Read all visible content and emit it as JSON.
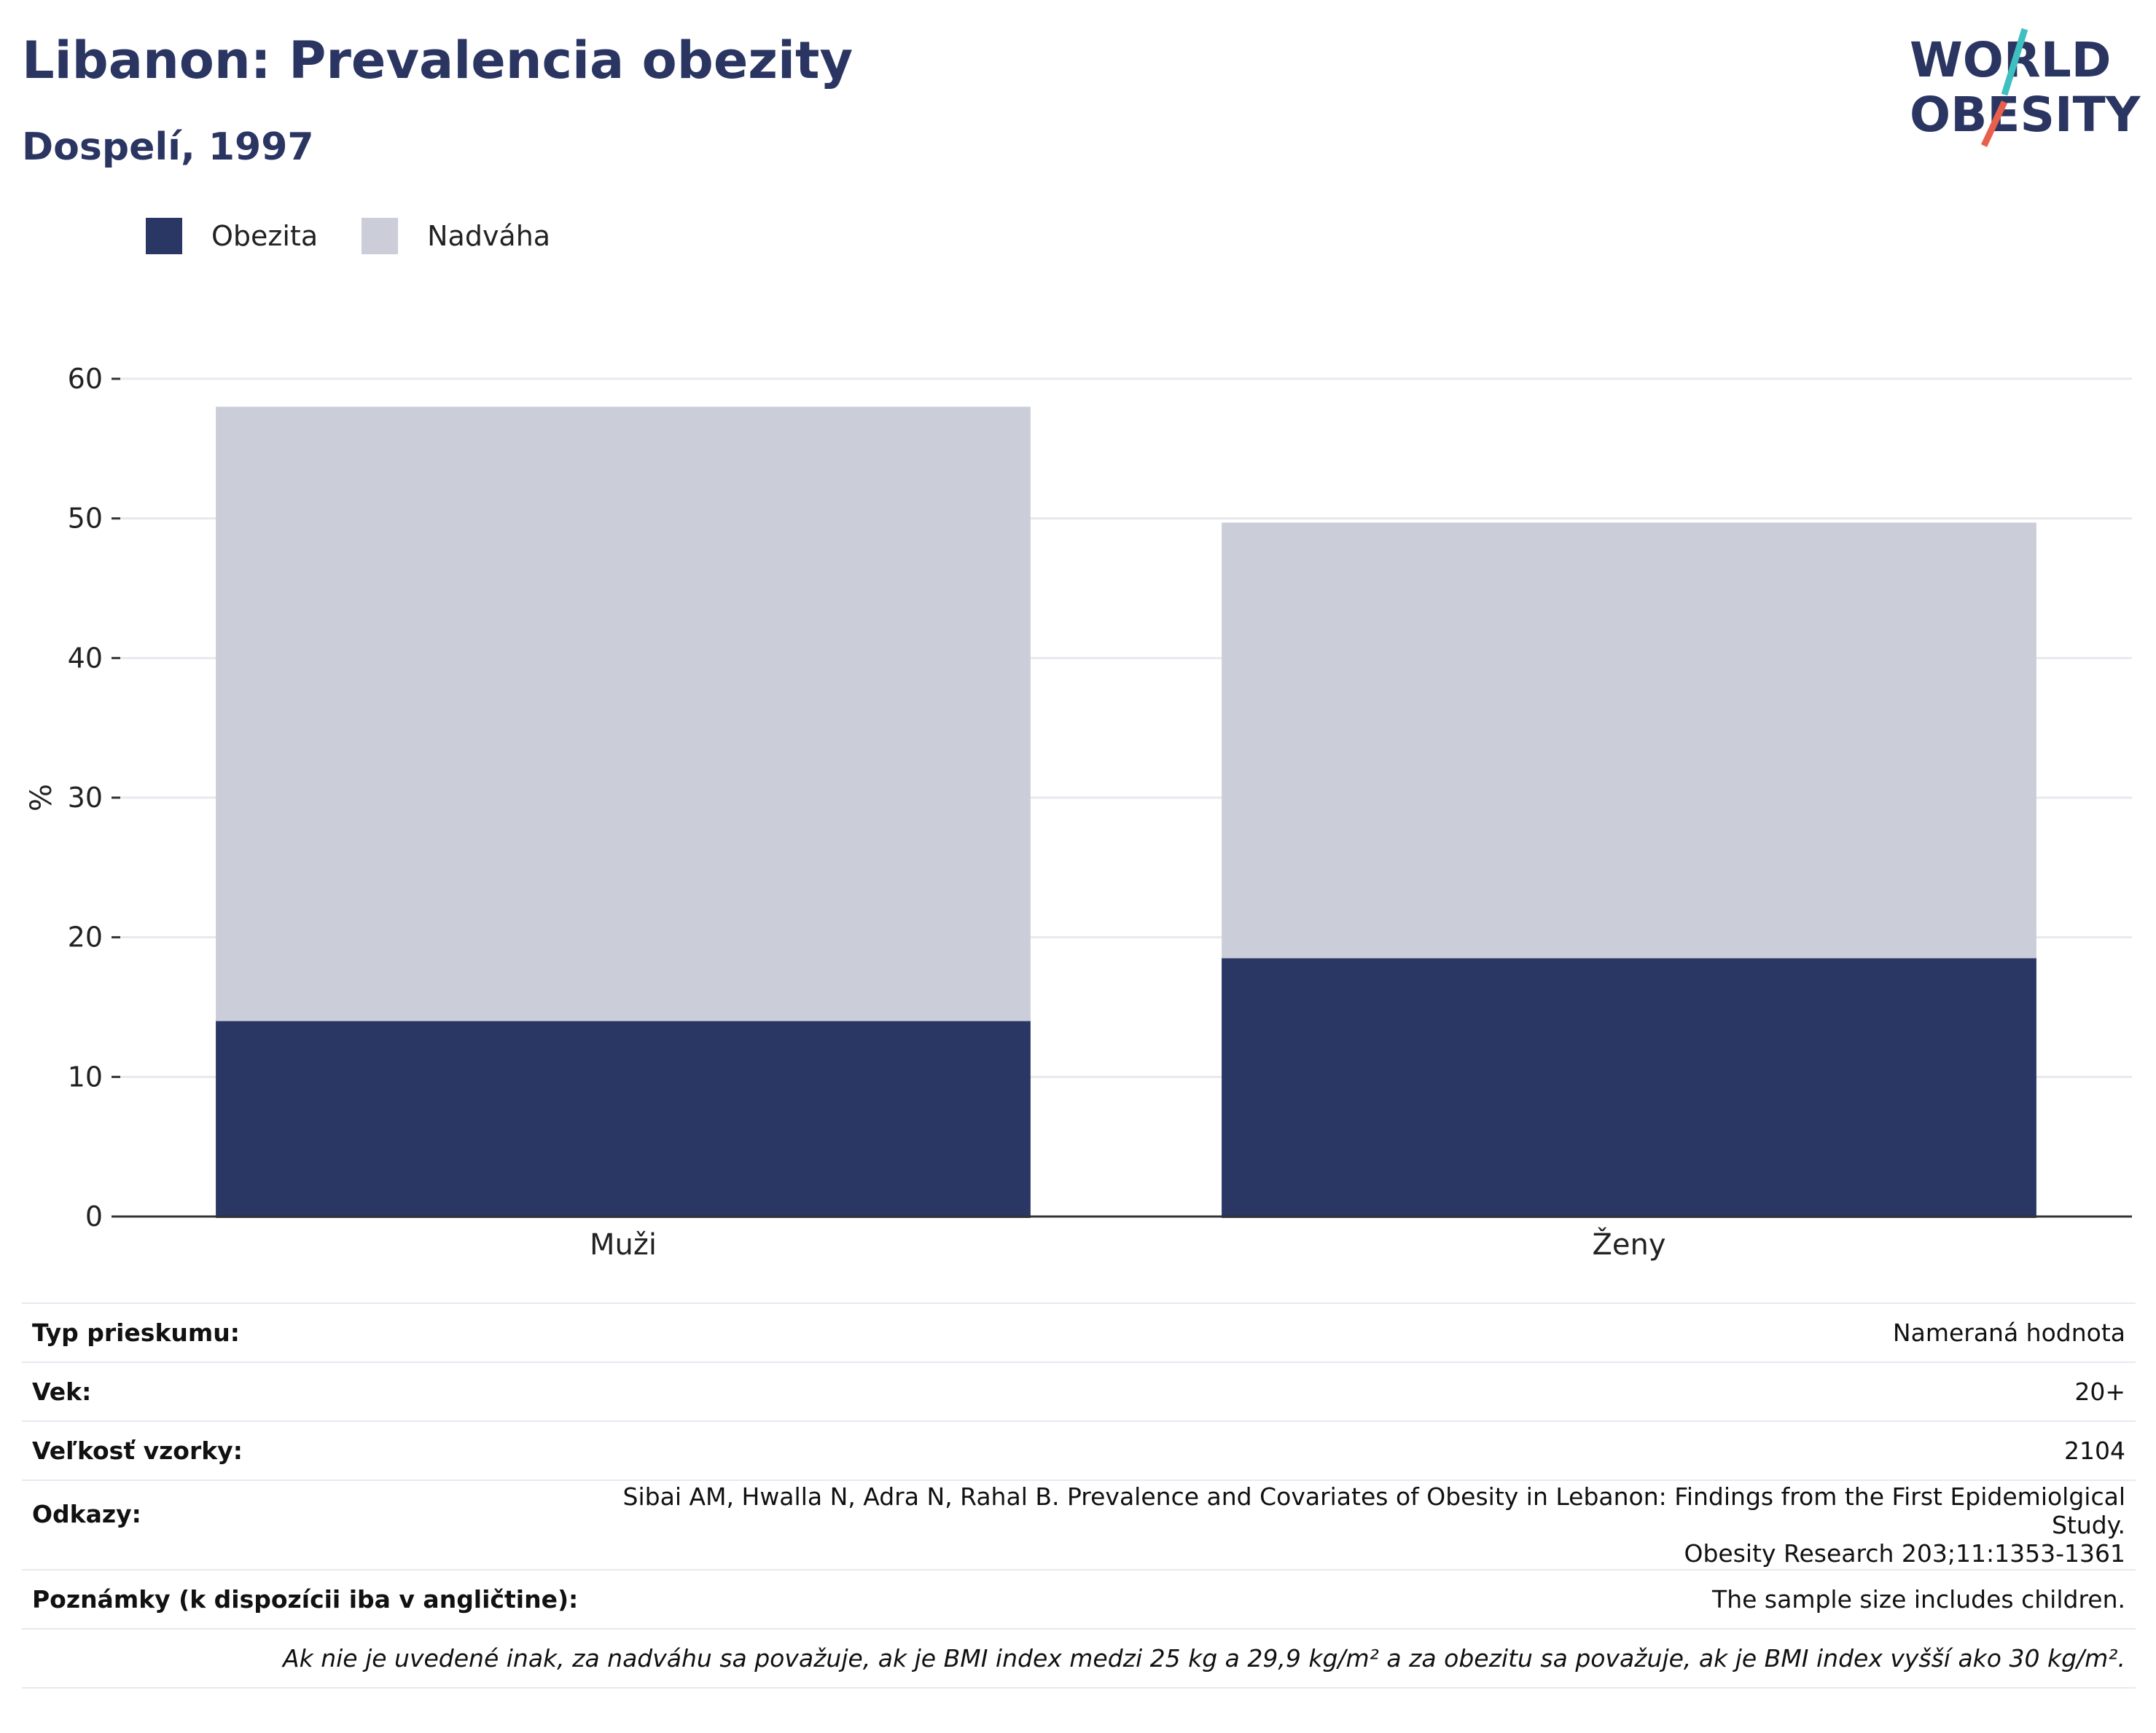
{
  "header": {
    "title": "Libanon: Prevalencia obezity",
    "subtitle": "Dospelí, 1997"
  },
  "logo": {
    "line1": "WORLD",
    "line2": "OBESITY",
    "colors": {
      "text": "#2a3562",
      "slash_top": "#3fbfbf",
      "slash_bottom": "#e8604c"
    }
  },
  "colors": {
    "obesity": "#2a3664",
    "overweight": "#cbcdd9",
    "grid": "#e8e9ef",
    "axis": "#333333"
  },
  "chart_data": {
    "type": "bar",
    "stacked": true,
    "categories": [
      "Muži",
      "Ženy"
    ],
    "series": [
      {
        "name": "Obezita",
        "values": [
          14.1,
          18.6
        ]
      },
      {
        "name": "Nadváha",
        "values": [
          43.9,
          31.1
        ]
      }
    ],
    "ylabel": "%",
    "ylim": [
      0,
      60
    ],
    "yticks": [
      0,
      10,
      20,
      30,
      40,
      50,
      60
    ],
    "grid": true,
    "legend_position": "top-left"
  },
  "info": {
    "rows": [
      {
        "key": "Typ prieskumu:",
        "value": "Nameraná hodnota"
      },
      {
        "key": "Vek:",
        "value": "20+"
      },
      {
        "key": "Veľkosť vzorky:",
        "value": "2104"
      },
      {
        "key": "Odkazy:",
        "value_lines": [
          "Sibai AM, Hwalla N, Adra N, Rahal B. Prevalence and Covariates of Obesity in Lebanon: Findings from the First Epidemiolgical Study.",
          "Obesity Research 203;11:1353-1361"
        ]
      },
      {
        "key": "Poznámky (k dispozícii iba v angličtine):",
        "value": "The sample size includes children."
      }
    ],
    "footnote": "Ak nie je uvedené inak, za nadváhu sa považuje, ak je BMI index medzi 25 kg a 29,9 kg/m² a za obezitu sa považuje, ak je BMI index vyšší ako 30 kg/m²."
  }
}
